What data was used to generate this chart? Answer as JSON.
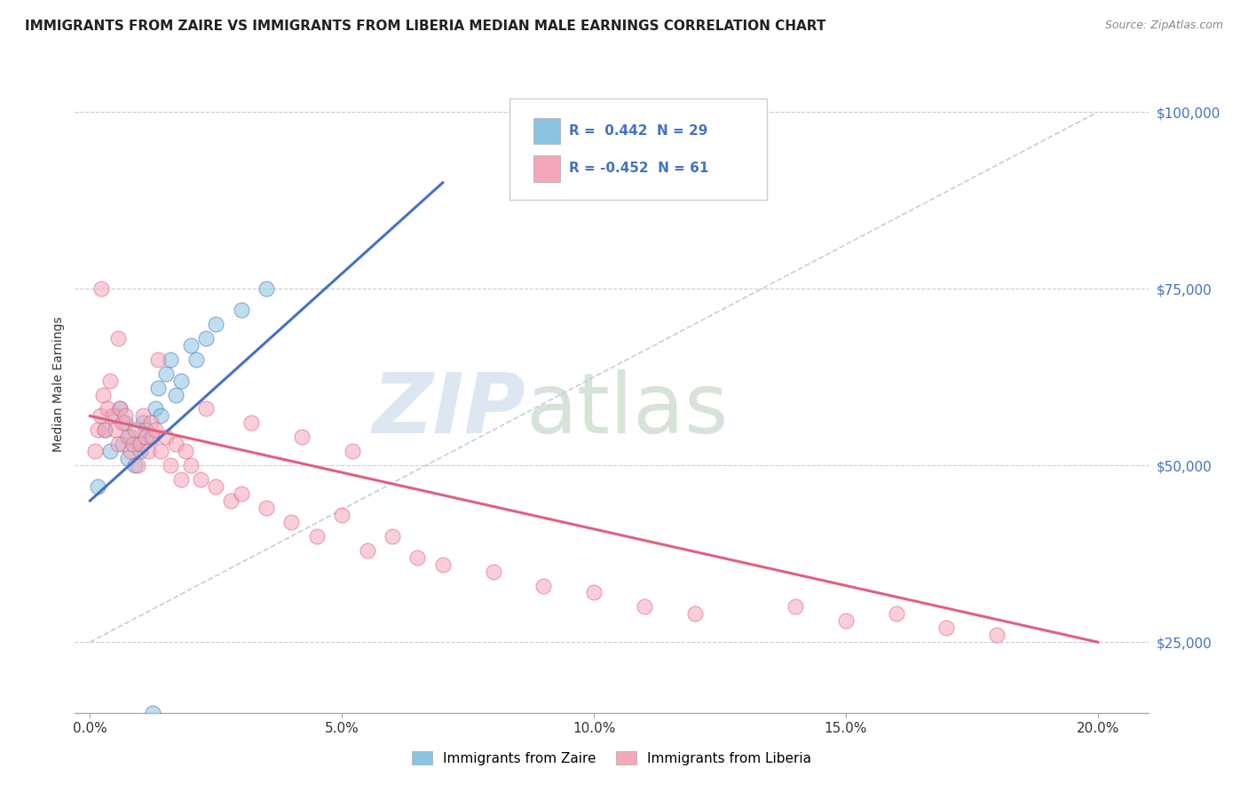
{
  "title": "IMMIGRANTS FROM ZAIRE VS IMMIGRANTS FROM LIBERIA MEDIAN MALE EARNINGS CORRELATION CHART",
  "source": "Source: ZipAtlas.com",
  "ylabel": "Median Male Earnings",
  "x_tick_labels": [
    "0.0%",
    "5.0%",
    "10.0%",
    "15.0%",
    "20.0%"
  ],
  "x_tick_positions": [
    0.0,
    5.0,
    10.0,
    15.0,
    20.0
  ],
  "y_tick_labels": [
    "$25,000",
    "$50,000",
    "$75,000",
    "$100,000"
  ],
  "y_tick_values": [
    25000,
    50000,
    75000,
    100000
  ],
  "ylim": [
    15000,
    108000
  ],
  "xlim": [
    -0.3,
    21.0
  ],
  "legend_zaire": "R =  0.442  N = 29",
  "legend_liberia": "R = -0.452  N = 61",
  "legend_label_zaire": "Immigrants from Zaire",
  "legend_label_liberia": "Immigrants from Liberia",
  "color_zaire": "#89C4E1",
  "color_liberia": "#F4A7B9",
  "color_zaire_line": "#4472C4",
  "color_liberia_line": "#E06080",
  "color_diag": "#C0D0E0",
  "watermark_zip": "ZIP",
  "watermark_atlas": "atlas",
  "watermark_color_zip": "#C5D8EA",
  "watermark_color_atlas": "#BDD0C0",
  "zaire_x": [
    0.15,
    0.3,
    0.4,
    0.5,
    0.6,
    0.65,
    0.7,
    0.75,
    0.8,
    0.9,
    0.95,
    1.0,
    1.05,
    1.1,
    1.2,
    1.3,
    1.35,
    1.4,
    1.5,
    1.6,
    1.7,
    1.8,
    2.0,
    2.1,
    2.3,
    2.5,
    3.0,
    3.5,
    1.25
  ],
  "zaire_y": [
    47000,
    55000,
    52000,
    57000,
    58000,
    53000,
    56000,
    51000,
    54000,
    50000,
    53000,
    52000,
    56000,
    55000,
    54000,
    58000,
    61000,
    57000,
    63000,
    65000,
    60000,
    62000,
    67000,
    65000,
    68000,
    70000,
    72000,
    75000,
    15000
  ],
  "liberia_x": [
    0.1,
    0.15,
    0.2,
    0.25,
    0.3,
    0.35,
    0.4,
    0.45,
    0.5,
    0.55,
    0.6,
    0.65,
    0.7,
    0.75,
    0.8,
    0.85,
    0.9,
    0.95,
    1.0,
    1.05,
    1.1,
    1.15,
    1.2,
    1.25,
    1.3,
    1.4,
    1.5,
    1.6,
    1.7,
    1.8,
    1.9,
    2.0,
    2.2,
    2.5,
    2.8,
    3.0,
    3.5,
    4.0,
    4.5,
    5.0,
    5.5,
    6.0,
    6.5,
    7.0,
    8.0,
    9.0,
    10.0,
    11.0,
    12.0,
    14.0,
    15.0,
    16.0,
    17.0,
    18.0,
    0.22,
    0.55,
    1.35,
    2.3,
    3.2,
    4.2,
    5.2
  ],
  "liberia_y": [
    52000,
    55000,
    57000,
    60000,
    55000,
    58000,
    62000,
    57000,
    55000,
    53000,
    58000,
    56000,
    57000,
    54000,
    52000,
    53000,
    55000,
    50000,
    53000,
    57000,
    54000,
    52000,
    56000,
    54000,
    55000,
    52000,
    54000,
    50000,
    53000,
    48000,
    52000,
    50000,
    48000,
    47000,
    45000,
    46000,
    44000,
    42000,
    40000,
    43000,
    38000,
    40000,
    37000,
    36000,
    35000,
    33000,
    32000,
    30000,
    29000,
    30000,
    28000,
    29000,
    27000,
    26000,
    75000,
    68000,
    65000,
    58000,
    56000,
    54000,
    52000
  ]
}
